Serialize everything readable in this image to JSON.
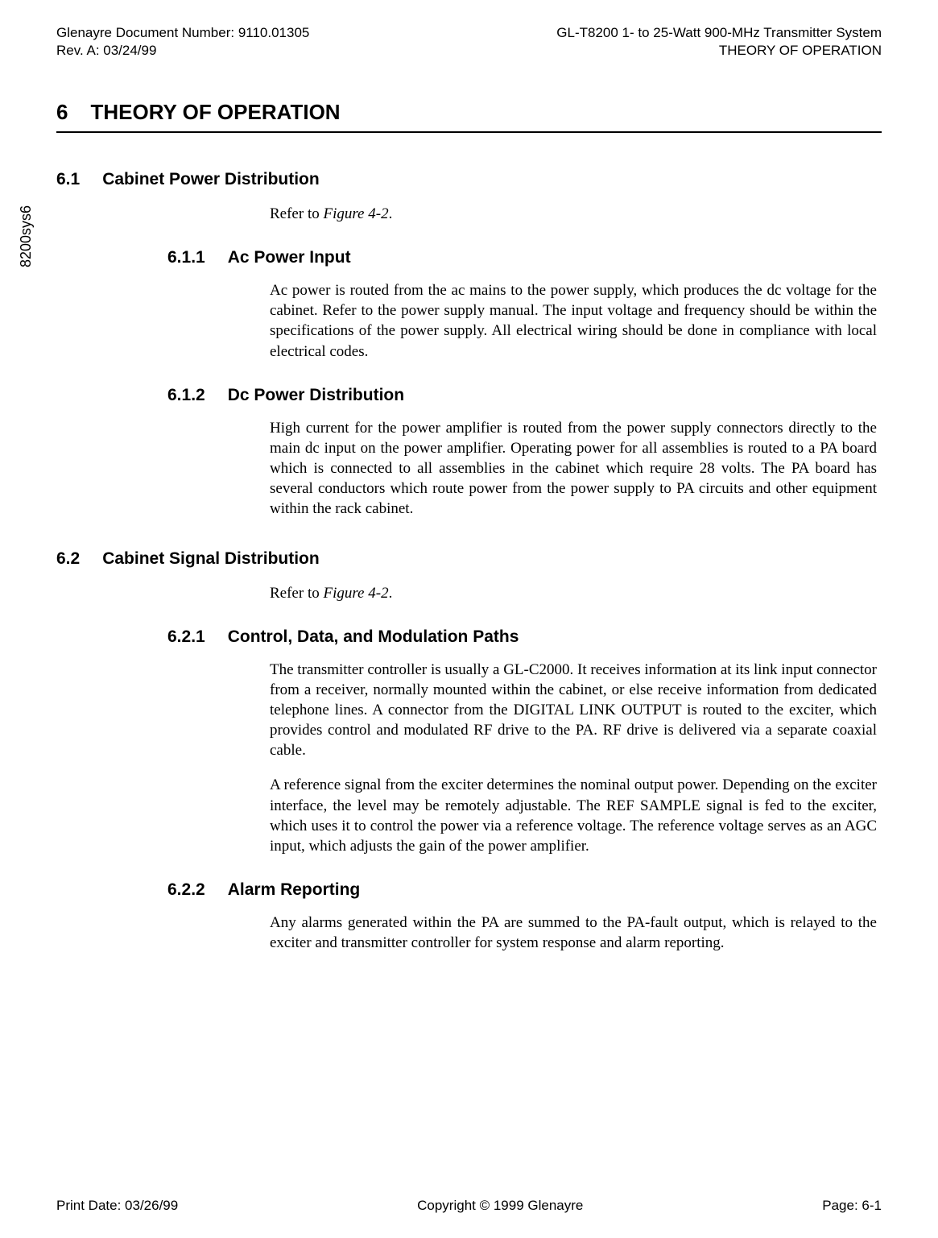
{
  "header": {
    "doc_number_label": "Glenayre Document Number: 9110.01305",
    "rev": "Rev. A: 03/24/99",
    "system": "GL-T8200 1- to 25-Watt 900-MHz Transmitter System",
    "section_ref": "THEORY OF OPERATION"
  },
  "side_label": "8200sys6",
  "chapter": {
    "number": "6",
    "title": "THEORY OF OPERATION"
  },
  "s61": {
    "num": "6.1",
    "title": "Cabinet Power Distribution",
    "intro_prefix": "Refer to ",
    "intro_fig": "Figure 4-2",
    "intro_suffix": "."
  },
  "s611": {
    "num": "6.1.1",
    "title": "Ac Power Input",
    "p1": "Ac power is routed from the ac mains to the power supply, which produces the dc voltage for the cabinet. Refer to the power supply manual. The input voltage and frequency should be within the specifications of the power supply. All electrical wiring should be done in compliance with local electrical codes."
  },
  "s612": {
    "num": "6.1.2",
    "title": "Dc Power Distribution",
    "p1": "High current for the power amplifier is routed from the power supply connectors directly to the main dc input on the power amplifier. Operating power for all assemblies is routed to a PA board which is connected to all assemblies in the cabinet which require 28 volts. The PA board has several conductors which route power from the power supply to PA circuits and other equipment within the rack cabinet."
  },
  "s62": {
    "num": "6.2",
    "title": "Cabinet Signal Distribution",
    "intro_prefix": "Refer to ",
    "intro_fig": "Figure 4-2",
    "intro_suffix": "."
  },
  "s621": {
    "num": "6.2.1",
    "title": "Control, Data, and Modulation Paths",
    "p1": "The transmitter controller is usually a GL-C2000. It receives information at its link input connector from a receiver, normally mounted within the cabinet, or else receive information from dedicated telephone lines. A connector from the DIGITAL LINK OUTPUT is routed to the exciter, which provides control and modulated RF drive to the PA. RF drive is delivered via a separate coaxial cable.",
    "p2": "A reference signal from the exciter determines the nominal output power. Depending on the exciter interface, the level may be remotely adjustable. The REF SAMPLE signal is fed to the exciter, which uses it to control the power via a reference voltage. The reference voltage serves as an AGC input, which adjusts the gain of the power amplifier."
  },
  "s622": {
    "num": "6.2.2",
    "title": "Alarm Reporting",
    "p1": "Any alarms generated within the PA are summed to the PA-fault output, which is relayed to the exciter and transmitter controller for system response and alarm reporting."
  },
  "footer": {
    "print_date": "Print Date: 03/26/99",
    "copyright": "Copyright © 1999 Glenayre",
    "page": "Page: 6-1"
  }
}
